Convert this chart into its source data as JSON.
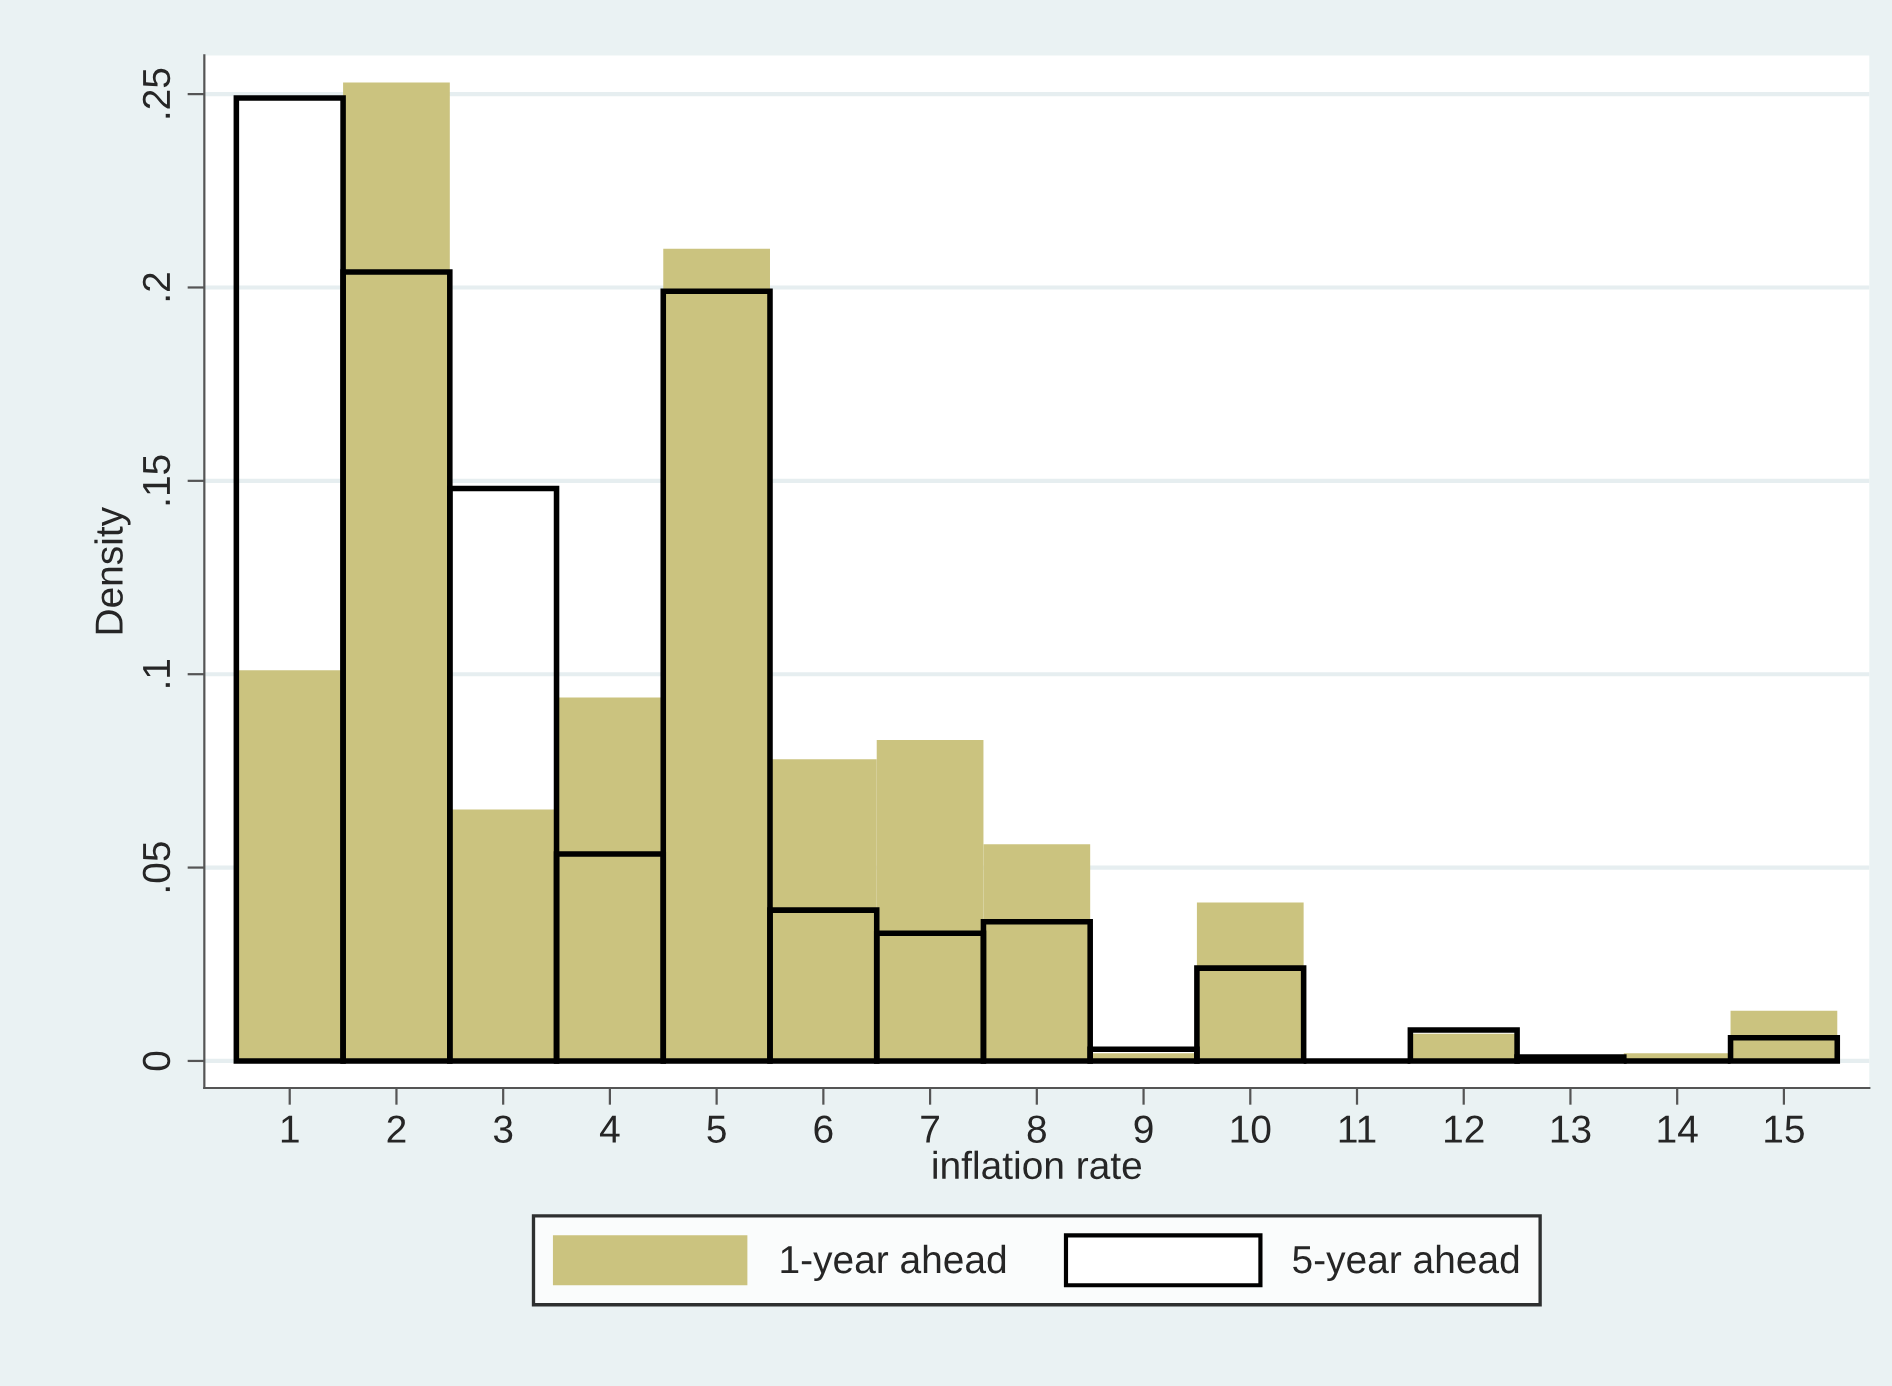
{
  "chart_data": {
    "type": "histogram",
    "xlabel": "inflation rate",
    "ylabel": "Density",
    "bins": [
      0.5,
      1.5,
      2.5,
      3.5,
      4.5,
      5.5,
      6.5,
      7.5,
      8.5,
      9.5,
      10.5,
      11.5,
      12.5,
      13.5,
      14.5,
      15.5
    ],
    "series": [
      {
        "name": "1-year ahead",
        "color": "#cbc37f",
        "values": [
          0.101,
          0.253,
          0.065,
          0.094,
          0.21,
          0.078,
          0.083,
          0.056,
          0.002,
          0.041,
          0,
          0.007,
          0,
          0.002,
          0.013
        ]
      },
      {
        "name": "5-year ahead",
        "color": "#000000",
        "values": [
          0.249,
          0.204,
          0.148,
          0.0535,
          0.199,
          0.039,
          0.033,
          0.036,
          0.003,
          0.024,
          0,
          0.008,
          0.001,
          0,
          0.006
        ]
      }
    ],
    "xlim": [
      0.2,
      15.8
    ],
    "xticks": [
      1,
      2,
      3,
      4,
      5,
      6,
      7,
      8,
      9,
      10,
      11,
      12,
      13,
      14,
      15
    ],
    "ylim": [
      -0.007,
      0.26
    ],
    "yticks": [
      {
        "value": 0,
        "label": "0"
      },
      {
        "value": 0.05,
        "label": ".05"
      },
      {
        "value": 0.1,
        "label": ".1"
      },
      {
        "value": 0.15,
        "label": ".15"
      },
      {
        "value": 0.2,
        "label": ".2"
      },
      {
        "value": 0.25,
        "label": ".25"
      }
    ],
    "grid": "y",
    "legend": "bottom"
  }
}
